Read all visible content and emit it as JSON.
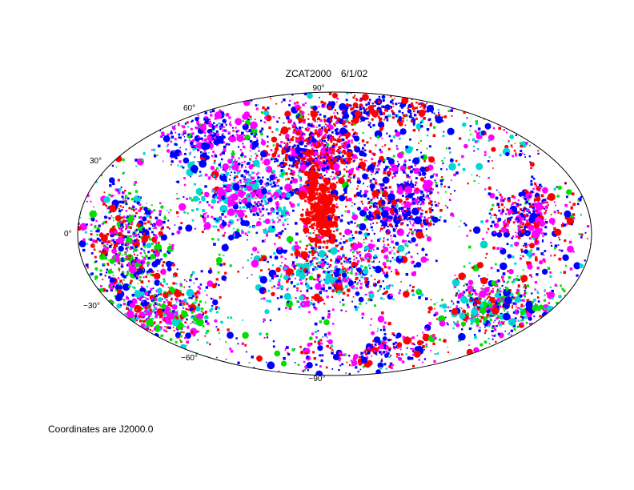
{
  "title": "ZCAT2000",
  "date": "6/1/02",
  "projection": "Aitoff/Hammer all-sky (equal-area ellipse)",
  "latitude_labels": {
    "north_pole": "90°",
    "n60": "60°",
    "n30": "30°",
    "equator": "0°",
    "s30": "−30°",
    "s60": "−60°",
    "south_pole": "−90°"
  },
  "footnote": "Coordinates are J2000.0",
  "colors": {
    "red": "#ff0000",
    "blue": "#0000ff",
    "magenta": "#ff00ff",
    "green": "#00e000",
    "cyan": "#00d8d8",
    "outline": "#000000"
  }
}
